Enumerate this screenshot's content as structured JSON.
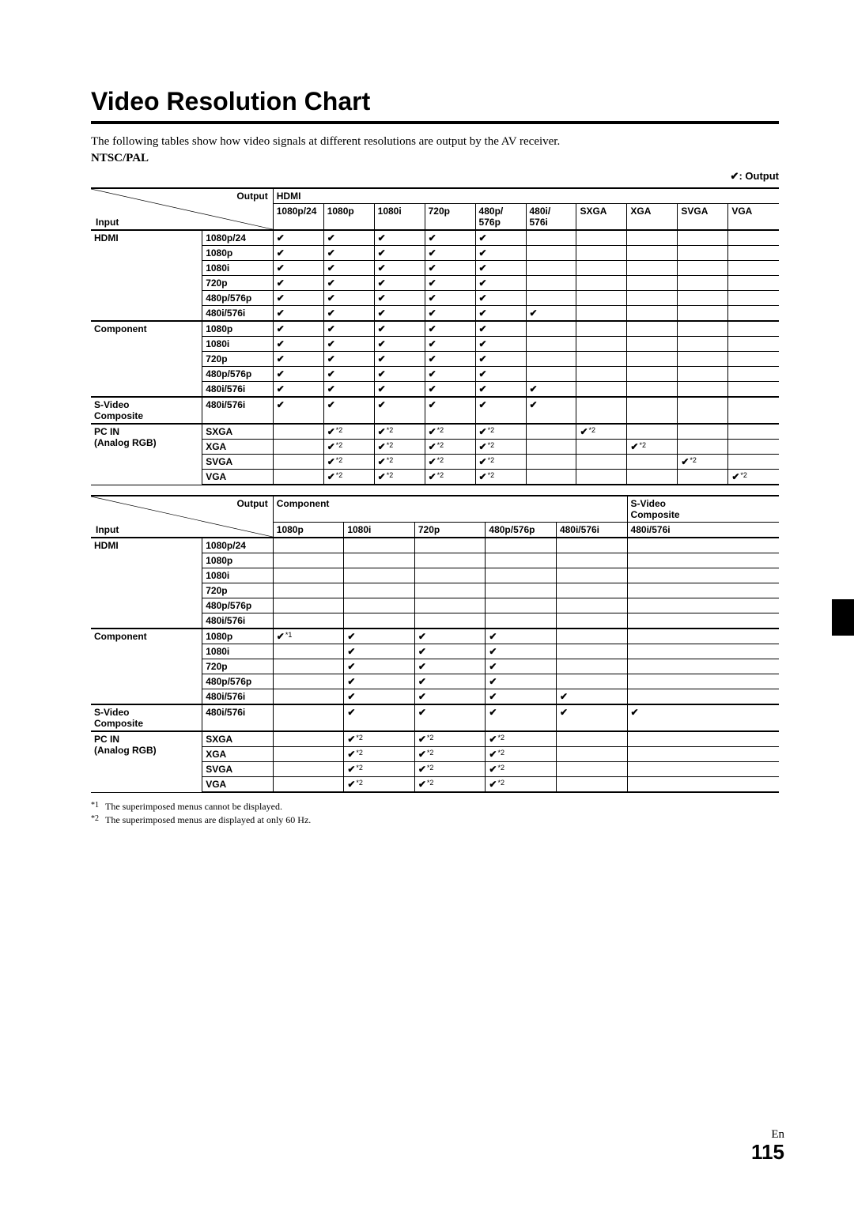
{
  "title": "Video Resolution Chart",
  "intro": "The following tables show how video signals at different resolutions are output by the AV receiver.",
  "subhead": "NTSC/PAL",
  "legend_check": "✔",
  "legend_text": ": Output",
  "labels": {
    "output": "Output",
    "input": "Input"
  },
  "table1": {
    "output_group": "HDMI",
    "cols": [
      "1080p/24",
      "1080p",
      "1080i",
      "720p",
      "480p/\n576p",
      "480i/\n576i",
      "SXGA",
      "XGA",
      "SVGA",
      "VGA"
    ],
    "groups": [
      {
        "name": "HDMI",
        "sub": "",
        "rows": [
          {
            "label": "1080p/24",
            "cells": [
              "c",
              "c",
              "c",
              "c",
              "c",
              "",
              "",
              "",
              "",
              ""
            ]
          },
          {
            "label": "1080p",
            "cells": [
              "c",
              "c",
              "c",
              "c",
              "c",
              "",
              "",
              "",
              "",
              ""
            ]
          },
          {
            "label": "1080i",
            "cells": [
              "c",
              "c",
              "c",
              "c",
              "c",
              "",
              "",
              "",
              "",
              ""
            ]
          },
          {
            "label": "720p",
            "cells": [
              "c",
              "c",
              "c",
              "c",
              "c",
              "",
              "",
              "",
              "",
              ""
            ]
          },
          {
            "label": "480p/576p",
            "cells": [
              "c",
              "c",
              "c",
              "c",
              "c",
              "",
              "",
              "",
              "",
              ""
            ]
          },
          {
            "label": "480i/576i",
            "cells": [
              "c",
              "c",
              "c",
              "c",
              "c",
              "c",
              "",
              "",
              "",
              ""
            ]
          }
        ]
      },
      {
        "name": "Component",
        "sub": "",
        "rows": [
          {
            "label": "1080p",
            "cells": [
              "c",
              "c",
              "c",
              "c",
              "c",
              "",
              "",
              "",
              "",
              ""
            ]
          },
          {
            "label": "1080i",
            "cells": [
              "c",
              "c",
              "c",
              "c",
              "c",
              "",
              "",
              "",
              "",
              ""
            ]
          },
          {
            "label": "720p",
            "cells": [
              "c",
              "c",
              "c",
              "c",
              "c",
              "",
              "",
              "",
              "",
              ""
            ]
          },
          {
            "label": "480p/576p",
            "cells": [
              "c",
              "c",
              "c",
              "c",
              "c",
              "",
              "",
              "",
              "",
              ""
            ]
          },
          {
            "label": "480i/576i",
            "cells": [
              "c",
              "c",
              "c",
              "c",
              "c",
              "c",
              "",
              "",
              "",
              ""
            ]
          }
        ]
      },
      {
        "name": "S-Video\nComposite",
        "sub": "",
        "rows": [
          {
            "label": "480i/576i",
            "cells": [
              "c",
              "c",
              "c",
              "c",
              "c",
              "c",
              "",
              "",
              "",
              ""
            ]
          }
        ]
      },
      {
        "name": "PC IN",
        "sub": "(Analog RGB)",
        "rows": [
          {
            "label": "SXGA",
            "cells": [
              "",
              "c2",
              "c2",
              "c2",
              "c2",
              "",
              "c2",
              "",
              "",
              ""
            ]
          },
          {
            "label": "XGA",
            "cells": [
              "",
              "c2",
              "c2",
              "c2",
              "c2",
              "",
              "",
              "c2",
              "",
              ""
            ]
          },
          {
            "label": "SVGA",
            "cells": [
              "",
              "c2",
              "c2",
              "c2",
              "c2",
              "",
              "",
              "",
              "c2",
              ""
            ]
          },
          {
            "label": "VGA",
            "cells": [
              "",
              "c2",
              "c2",
              "c2",
              "c2",
              "",
              "",
              "",
              "",
              "c2"
            ]
          }
        ]
      }
    ]
  },
  "table2": {
    "output_group1": "Component",
    "output_group2": "S-Video\nComposite",
    "cols1": [
      "1080p",
      "1080i",
      "720p",
      "480p/576p",
      "480i/576i"
    ],
    "cols2": [
      "480i/576i"
    ],
    "groups": [
      {
        "name": "HDMI",
        "sub": "",
        "rows": [
          {
            "label": "1080p/24",
            "cells": [
              "",
              "",
              "",
              "",
              "",
              ""
            ]
          },
          {
            "label": "1080p",
            "cells": [
              "",
              "",
              "",
              "",
              "",
              ""
            ]
          },
          {
            "label": "1080i",
            "cells": [
              "",
              "",
              "",
              "",
              "",
              ""
            ]
          },
          {
            "label": "720p",
            "cells": [
              "",
              "",
              "",
              "",
              "",
              ""
            ]
          },
          {
            "label": "480p/576p",
            "cells": [
              "",
              "",
              "",
              "",
              "",
              ""
            ]
          },
          {
            "label": "480i/576i",
            "cells": [
              "",
              "",
              "",
              "",
              "",
              ""
            ]
          }
        ]
      },
      {
        "name": "Component",
        "sub": "",
        "rows": [
          {
            "label": "1080p",
            "cells": [
              "c1",
              "c",
              "c",
              "c",
              "",
              ""
            ]
          },
          {
            "label": "1080i",
            "cells": [
              "",
              "c",
              "c",
              "c",
              "",
              ""
            ]
          },
          {
            "label": "720p",
            "cells": [
              "",
              "c",
              "c",
              "c",
              "",
              ""
            ]
          },
          {
            "label": "480p/576p",
            "cells": [
              "",
              "c",
              "c",
              "c",
              "",
              ""
            ]
          },
          {
            "label": "480i/576i",
            "cells": [
              "",
              "c",
              "c",
              "c",
              "c",
              ""
            ]
          }
        ]
      },
      {
        "name": "S-Video\nComposite",
        "sub": "",
        "rows": [
          {
            "label": "480i/576i",
            "cells": [
              "",
              "c",
              "c",
              "c",
              "c",
              "c"
            ]
          }
        ]
      },
      {
        "name": "PC IN",
        "sub": "(Analog RGB)",
        "rows": [
          {
            "label": "SXGA",
            "cells": [
              "",
              "c2",
              "c2",
              "c2",
              "",
              ""
            ]
          },
          {
            "label": "XGA",
            "cells": [
              "",
              "c2",
              "c2",
              "c2",
              "",
              ""
            ]
          },
          {
            "label": "SVGA",
            "cells": [
              "",
              "c2",
              "c2",
              "c2",
              "",
              ""
            ]
          },
          {
            "label": "VGA",
            "cells": [
              "",
              "c2",
              "c2",
              "c2",
              "",
              ""
            ]
          }
        ]
      }
    ]
  },
  "footnotes": [
    {
      "num": "*1",
      "text": "The superimposed menus cannot be displayed."
    },
    {
      "num": "*2",
      "text": "The superimposed menus are displayed at only 60 Hz."
    }
  ],
  "footer": {
    "lang": "En",
    "page": "115"
  }
}
